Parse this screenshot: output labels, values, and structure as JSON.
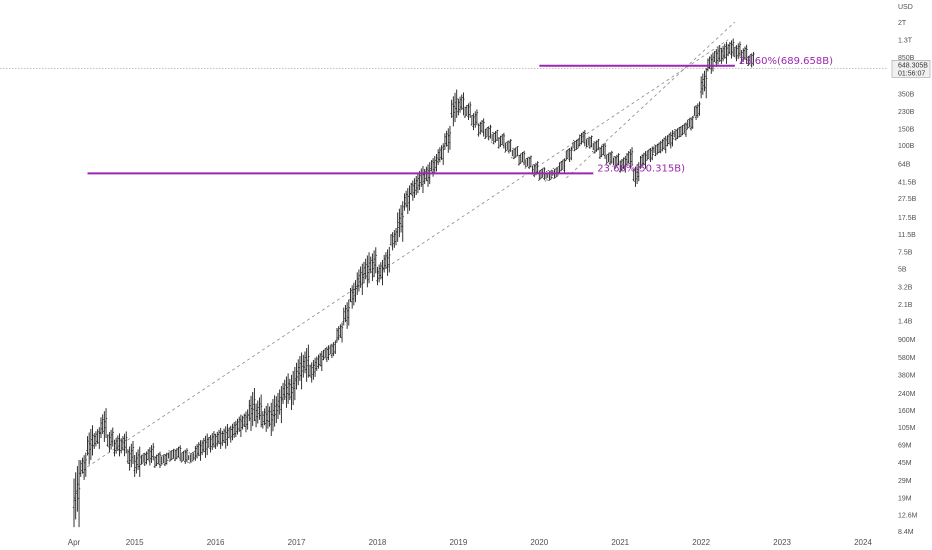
{
  "chart_data": {
    "type": "bar",
    "subtype": "ohlc-log",
    "y_unit": "USD",
    "scale": "log",
    "grid": false,
    "y_ticks": [
      "2T",
      "1.3T",
      "850B",
      "350B",
      "230B",
      "150B",
      "100B",
      "64B",
      "41.5B",
      "27.5B",
      "17.5B",
      "11.5B",
      "7.5B",
      "5B",
      "3.2B",
      "2.1B",
      "1.4B",
      "900M",
      "580M",
      "380M",
      "240M",
      "160M",
      "105M",
      "69M",
      "45M",
      "29M",
      "19M",
      "12.6M",
      "8.4M"
    ],
    "x_ticks": [
      "Apr",
      "2015",
      "2016",
      "2017",
      "2018",
      "2019",
      "2020",
      "2021",
      "2022",
      "2023",
      "2024"
    ],
    "current_price_label": "648.305B",
    "countdown_label": "01:56:07",
    "annotations": [
      {
        "label": "23.60%(689.658B)",
        "value": "689.658B",
        "from": "2020-01",
        "to": "2022-06"
      },
      {
        "label": "23.60%(50.315B)",
        "value": "50.315B",
        "from": "2014-06",
        "to": "2020-09"
      }
    ],
    "trend_channel": {
      "lower": [
        {
          "x": "2014-06",
          "y": "40M"
        },
        {
          "x": "2022-05",
          "y": "1.3T"
        }
      ],
      "upper": [
        {
          "x": "2020-05",
          "y": "45B"
        },
        {
          "x": "2022-06",
          "y": "2T"
        }
      ]
    },
    "series": [
      {
        "values": [
          [
            "2014-04",
            8.4,
            55
          ],
          [
            "2014-05",
            28,
            60
          ],
          [
            "2014-06",
            40,
            120
          ],
          [
            "2014-07",
            60,
            110
          ],
          [
            "2014-08",
            70,
            180
          ],
          [
            "2014-09",
            55,
            110
          ],
          [
            "2014-10",
            50,
            95
          ],
          [
            "2014-11",
            50,
            100
          ],
          [
            "2014-12",
            35,
            80
          ],
          [
            "2015-01",
            30,
            70
          ],
          [
            "2015-02",
            40,
            60
          ],
          [
            "2015-03",
            40,
            75
          ],
          [
            "2015-04",
            38,
            60
          ],
          [
            "2015-05",
            40,
            58
          ],
          [
            "2015-06",
            45,
            63
          ],
          [
            "2015-07",
            45,
            70
          ],
          [
            "2015-08",
            42,
            65
          ],
          [
            "2015-09",
            44,
            58
          ],
          [
            "2015-10",
            45,
            80
          ],
          [
            "2015-11",
            48,
            95
          ],
          [
            "2015-12",
            55,
            100
          ],
          [
            "2016-01",
            60,
            108
          ],
          [
            "2016-02",
            60,
            120
          ],
          [
            "2016-03",
            70,
            125
          ],
          [
            "2016-04",
            80,
            150
          ],
          [
            "2016-05",
            90,
            170
          ],
          [
            "2016-06",
            90,
            300
          ],
          [
            "2016-07",
            100,
            250
          ],
          [
            "2016-08",
            90,
            200
          ],
          [
            "2016-09",
            80,
            250
          ],
          [
            "2016-10",
            110,
            310
          ],
          [
            "2016-11",
            160,
            420
          ],
          [
            "2016-12",
            150,
            500
          ],
          [
            "2017-01",
            250,
            700
          ],
          [
            "2017-02",
            300,
            850
          ],
          [
            "2017-03",
            300,
            600
          ],
          [
            "2017-04",
            400,
            700
          ],
          [
            "2017-05",
            500,
            800
          ],
          [
            "2017-06",
            550,
            900
          ],
          [
            "2017-07",
            800,
            1400
          ],
          [
            "2017-08",
            1100,
            2500
          ],
          [
            "2017-09",
            1800,
            4000
          ],
          [
            "2017-10",
            2500,
            6000
          ],
          [
            "2017-11",
            3000,
            8000
          ],
          [
            "2017-12",
            3500,
            9000
          ],
          [
            "2018-01",
            3200,
            6500
          ],
          [
            "2018-02",
            4000,
            9000
          ],
          [
            "2018-03",
            7500,
            14000
          ],
          [
            "2018-04",
            9000,
            28000
          ],
          [
            "2018-05",
            18000,
            40000
          ],
          [
            "2018-06",
            25000,
            50000
          ],
          [
            "2018-07",
            30000,
            64000
          ],
          [
            "2018-08",
            35000,
            70000
          ],
          [
            "2018-09",
            45000,
            85000
          ],
          [
            "2018-10",
            60000,
            110000
          ],
          [
            "2018-11",
            80000,
            170000
          ],
          [
            "2018-12",
            150000,
            420000
          ],
          [
            "2019-01",
            200000,
            380000
          ],
          [
            "2019-02",
            180000,
            300000
          ],
          [
            "2019-03",
            140000,
            250000
          ],
          [
            "2019-04",
            120000,
            200000
          ],
          [
            "2019-05",
            110000,
            170000
          ],
          [
            "2019-06",
            100000,
            150000
          ],
          [
            "2019-07",
            90000,
            140000
          ],
          [
            "2019-08",
            80000,
            120000
          ],
          [
            "2019-09",
            70000,
            100000
          ],
          [
            "2019-10",
            60000,
            90000
          ],
          [
            "2019-11",
            55000,
            80000
          ],
          [
            "2019-12",
            45000,
            70000
          ],
          [
            "2020-01",
            42000,
            60000
          ],
          [
            "2020-02",
            42000,
            55000
          ],
          [
            "2020-03",
            44000,
            60000
          ],
          [
            "2020-04",
            50000,
            75000
          ],
          [
            "2020-05",
            65000,
            100000
          ],
          [
            "2020-06",
            85000,
            120000
          ],
          [
            "2020-07",
            95000,
            150000
          ],
          [
            "2020-08",
            90000,
            130000
          ],
          [
            "2020-09",
            80000,
            120000
          ],
          [
            "2020-10",
            70000,
            110000
          ],
          [
            "2020-11",
            60000,
            90000
          ],
          [
            "2020-12",
            55000,
            85000
          ],
          [
            "2021-01",
            50000,
            80000
          ],
          [
            "2021-02",
            55000,
            100000
          ],
          [
            "2021-03",
            35000,
            70000
          ],
          [
            "2021-04",
            55000,
            90000
          ],
          [
            "2021-05",
            65000,
            100000
          ],
          [
            "2021-06",
            75000,
            110000
          ],
          [
            "2021-07",
            80000,
            130000
          ],
          [
            "2021-08",
            90000,
            150000
          ],
          [
            "2021-09",
            110000,
            160000
          ],
          [
            "2021-10",
            120000,
            180000
          ],
          [
            "2021-11",
            140000,
            210000
          ],
          [
            "2021-12",
            180000,
            300000
          ],
          [
            "2022-01",
            300000,
            700000
          ],
          [
            "2022-02",
            550000,
            1000000
          ],
          [
            "2022-03",
            650000,
            1200000
          ],
          [
            "2022-04",
            700000,
            1300000
          ],
          [
            "2022-05",
            800000,
            1400000
          ],
          [
            "2022-06",
            750000,
            1300000
          ],
          [
            "2022-07",
            700000,
            1200000
          ],
          [
            "2022-08",
            648000,
            1000000
          ]
        ]
      }
    ]
  }
}
